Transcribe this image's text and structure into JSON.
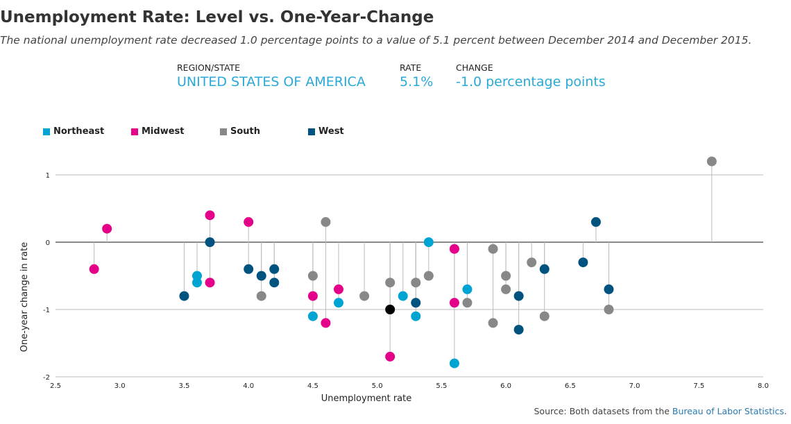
{
  "header": {
    "title": "Unemployment Rate: Level vs. One-Year-Change",
    "subtitle": "The national unemployment rate decreased 1.0 percentage points to a value of 5.1 percent between December 2014 and December 2015."
  },
  "summary": {
    "region_label": "REGION/STATE",
    "region_value": "UNITED STATES OF AMERICA",
    "rate_label": "RATE",
    "rate_value": "5.1%",
    "change_label": "CHANGE",
    "change_value": "-1.0 percentage points"
  },
  "legend": [
    {
      "label": "Northeast",
      "color": "#00a4d3"
    },
    {
      "label": "Midwest",
      "color": "#e5008a"
    },
    {
      "label": "South",
      "color": "#888888"
    },
    {
      "label": "West",
      "color": "#00527f"
    }
  ],
  "source": {
    "prefix": "Source: Both datasets from the ",
    "link": "Bureau of Labor Statistics",
    "suffix": "."
  },
  "chart_data": {
    "type": "scatter",
    "title": "Unemployment Rate: Level vs. One-Year-Change",
    "xlabel": "Unemployment rate",
    "ylabel": "One-year change in rate",
    "xlim": [
      2.5,
      8.0
    ],
    "ylim": [
      -2,
      1.3
    ],
    "xticks": [
      "2.5",
      "3.0",
      "3.5",
      "4.0",
      "4.5",
      "5.0",
      "5.5",
      "6.0",
      "6.5",
      "7.0",
      "7.5",
      "8.0"
    ],
    "yticks": [
      "1",
      "0",
      "-1",
      "-2"
    ],
    "grid": "horizontal",
    "legend_position": "top-left",
    "highlight": {
      "x": 5.1,
      "y": -1.0,
      "color": "#000000"
    },
    "series": [
      {
        "name": "Northeast",
        "color": "#00a4d3",
        "points": [
          [
            3.6,
            -0.5
          ],
          [
            3.6,
            -0.6
          ],
          [
            4.5,
            -1.1
          ],
          [
            4.7,
            -0.9
          ],
          [
            5.2,
            -0.8
          ],
          [
            5.3,
            -1.1
          ],
          [
            5.4,
            0.0
          ],
          [
            5.6,
            -1.8
          ],
          [
            5.7,
            -0.7
          ]
        ]
      },
      {
        "name": "Midwest",
        "color": "#e5008a",
        "points": [
          [
            2.8,
            -0.4
          ],
          [
            2.9,
            0.2
          ],
          [
            3.7,
            0.4
          ],
          [
            3.7,
            -0.6
          ],
          [
            4.0,
            0.3
          ],
          [
            4.5,
            -0.8
          ],
          [
            4.6,
            -1.2
          ],
          [
            4.7,
            -0.7
          ],
          [
            5.1,
            -1.7
          ],
          [
            5.6,
            -0.1
          ],
          [
            5.6,
            -0.9
          ]
        ]
      },
      {
        "name": "South",
        "color": "#888888",
        "points": [
          [
            4.1,
            -0.8
          ],
          [
            4.5,
            -0.5
          ],
          [
            4.6,
            0.3
          ],
          [
            4.9,
            -0.8
          ],
          [
            5.1,
            -0.6
          ],
          [
            5.3,
            -0.6
          ],
          [
            5.4,
            -0.5
          ],
          [
            5.7,
            -0.9
          ],
          [
            5.9,
            -0.1
          ],
          [
            5.9,
            -1.2
          ],
          [
            6.0,
            -0.5
          ],
          [
            6.0,
            -0.7
          ],
          [
            6.2,
            -0.3
          ],
          [
            6.3,
            -1.1
          ],
          [
            6.8,
            -1.0
          ],
          [
            7.6,
            1.2
          ]
        ]
      },
      {
        "name": "West",
        "color": "#00527f",
        "points": [
          [
            3.5,
            -0.8
          ],
          [
            3.7,
            0.0
          ],
          [
            4.0,
            -0.4
          ],
          [
            4.1,
            -0.5
          ],
          [
            4.2,
            -0.4
          ],
          [
            4.2,
            -0.6
          ],
          [
            5.3,
            -0.9
          ],
          [
            6.1,
            -0.8
          ],
          [
            6.1,
            -1.3
          ],
          [
            6.3,
            -0.4
          ],
          [
            6.6,
            -0.3
          ],
          [
            6.7,
            0.3
          ],
          [
            6.8,
            -0.7
          ]
        ]
      }
    ]
  }
}
